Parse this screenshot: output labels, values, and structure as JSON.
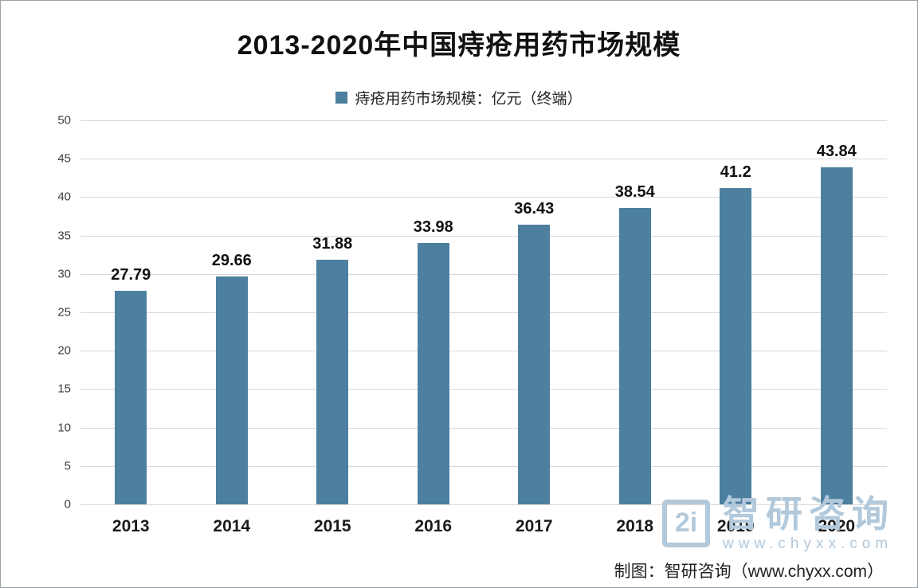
{
  "title": "2013-2020年中国痔疮用药市场规模",
  "legend": {
    "label": "痔疮用药市场规模：亿元（终端）",
    "marker_color": "#4d7f9f"
  },
  "chart_data": {
    "type": "bar",
    "categories": [
      "2013",
      "2014",
      "2015",
      "2016",
      "2017",
      "2018",
      "2019",
      "2020"
    ],
    "values": [
      27.79,
      29.66,
      31.88,
      33.98,
      36.43,
      38.54,
      41.2,
      43.84
    ],
    "title": "2013-2020年中国痔疮用药市场规模",
    "xlabel": "",
    "ylabel": "",
    "ylim": [
      0,
      50
    ],
    "ytick_step": 5,
    "bar_color": "#4d7f9f",
    "grid": true,
    "legend_position": "top"
  },
  "watermark": {
    "logo_glyph": "2i",
    "brand": "智研咨询",
    "url": "www.chyxx.com"
  },
  "footer": {
    "credit": "制图：智研咨询（www.chyxx.com）"
  }
}
